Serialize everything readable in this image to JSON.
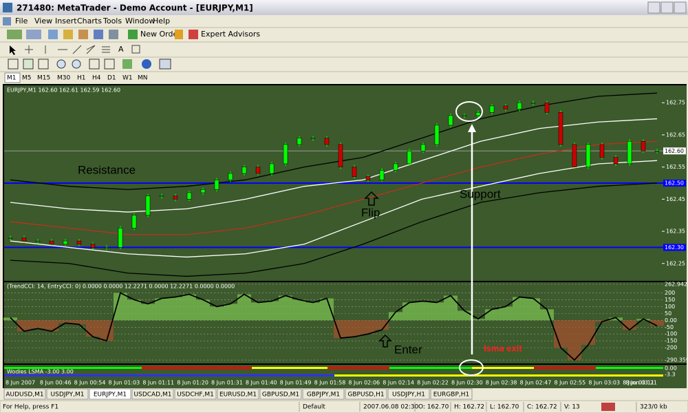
{
  "window": {
    "title": "271480: MetaTrader - Demo Account - [EURJPY,M1]",
    "menu": [
      "File",
      "View",
      "Insert",
      "Charts",
      "Tools",
      "Window",
      "Help"
    ],
    "toolbar": [
      "New Order",
      "Expert Advisors"
    ],
    "timeframes": [
      "M1",
      "M5",
      "M15",
      "M30",
      "H1",
      "H4",
      "D1",
      "W1",
      "MN"
    ]
  },
  "chart_data": {
    "type": "candlestick",
    "header": "EURJPY,M1  162.60 162.61 162.59 162.60",
    "closes": [
      162.33,
      162.32,
      162.32,
      162.31,
      162.32,
      162.31,
      162.3,
      162.3,
      162.36,
      162.4,
      162.46,
      162.46,
      162.45,
      162.47,
      162.48,
      162.51,
      162.53,
      162.55,
      162.53,
      162.56,
      162.62,
      162.64,
      162.64,
      162.62,
      162.55,
      162.52,
      162.51,
      162.54,
      162.56,
      162.6,
      162.62,
      162.68,
      162.71,
      162.71,
      162.72,
      162.74,
      162.73,
      162.75,
      162.75,
      162.72,
      162.62,
      162.55,
      162.62,
      162.58,
      162.56,
      162.63,
      162.6,
      162.6
    ],
    "up_color": "#00ff00",
    "down_color": "#cc0000",
    "ylim": [
      162.196,
      162.804
    ],
    "yticks": [
      162.75,
      162.65,
      162.55,
      162.45,
      162.35,
      162.25
    ],
    "levels": [
      {
        "value": 162.6,
        "label": "162.60",
        "color": "#9a9a9a"
      },
      {
        "value": 162.5,
        "label": "162.50",
        "color": "#0000ff"
      },
      {
        "value": 162.3,
        "label": "162.30",
        "color": "#0000ff"
      }
    ],
    "bands": [
      {
        "color": "#c0301c",
        "values": [
          162.38,
          162.36,
          162.34,
          162.34,
          162.36,
          162.4,
          162.45,
          162.5,
          162.55,
          162.59,
          162.62,
          162.63
        ]
      },
      {
        "color": "#ffffff",
        "values": [
          162.44,
          162.42,
          162.41,
          162.42,
          162.45,
          162.49,
          162.51,
          162.57,
          162.63,
          162.67,
          162.69,
          162.7
        ]
      },
      {
        "color": "#ffffff",
        "values": [
          162.32,
          162.3,
          162.28,
          162.27,
          162.28,
          162.31,
          162.38,
          162.45,
          162.49,
          162.53,
          162.56,
          162.57
        ]
      },
      {
        "color": "#000000",
        "values": [
          162.51,
          162.49,
          162.48,
          162.49,
          162.51,
          162.55,
          162.58,
          162.64,
          162.7,
          162.74,
          162.77,
          162.78
        ]
      },
      {
        "color": "#000000",
        "values": [
          162.26,
          162.25,
          162.22,
          162.21,
          162.22,
          162.25,
          162.31,
          162.38,
          162.44,
          162.47,
          162.49,
          162.5
        ]
      }
    ],
    "x_labels": [
      "8 Jun 2007",
      "8 Jun 00:46",
      "8 Jun 00:54",
      "8 Jun 01:03",
      "8 Jun 01:11",
      "8 Jun 01:20",
      "8 Jun 01:31",
      "8 Jun 01:40",
      "8 Jun 01:49",
      "8 Jun 01:58",
      "8 Jun 02:06",
      "8 Jun 02:14",
      "8 Jun 02:22",
      "8 Jun 02:30",
      "8 Jun 02:38",
      "8 Jun 02:47",
      "8 Jun 02:55",
      "8 Jun 03:03",
      "8 Jun 03:11",
      "8 Jun 03:21"
    ],
    "annotations": [
      "Resistance",
      "Flip",
      "Support",
      "Enter",
      "lsma exit"
    ]
  },
  "indicator": {
    "title": "(TrendCCI: 14, EntryCCI: 0)  0.0000 0.0000 12.2271 0.0000 12.2271 0.0000 0.0000",
    "values": [
      20,
      -80,
      -60,
      -80,
      -20,
      -30,
      -120,
      -150,
      200,
      150,
      120,
      160,
      170,
      190,
      150,
      100,
      120,
      190,
      130,
      140,
      180,
      150,
      130,
      160,
      -130,
      -120,
      -100,
      -70,
      60,
      130,
      140,
      130,
      180,
      70,
      10,
      80,
      100,
      170,
      160,
      80,
      -200,
      -290,
      -180,
      -10,
      20,
      -70,
      10,
      -40
    ],
    "ylim": [
      -315,
      278
    ],
    "yticks": [
      262.942,
      200,
      150,
      100,
      50,
      {
        "value": 0,
        "label": "0.00"
      },
      -50,
      -100,
      -150,
      -200,
      -290.359
    ]
  },
  "lsma": {
    "title": "Wodies LSMA -3.00 3.00",
    "axis_labels": [
      "0.00",
      "-3.3"
    ]
  },
  "tabs": [
    "AUDUSD,M1",
    "USDJPY,M1",
    "EURJPY,M1",
    "USDCAD,M1",
    "USDCHF,M1",
    "EURUSD,M1",
    "GBPUSD,M1",
    "GBPJPY,M1",
    "GBPUSD,H1",
    "USDJPY,H1",
    "EURGBP,H1"
  ],
  "status": [
    "For Help, press F1",
    "Default",
    "2007.06.08 02:30",
    "O: 162.70",
    "H: 162.72",
    "L: 162.70",
    "C: 162.72",
    "V: 13",
    "323/0 kb"
  ]
}
